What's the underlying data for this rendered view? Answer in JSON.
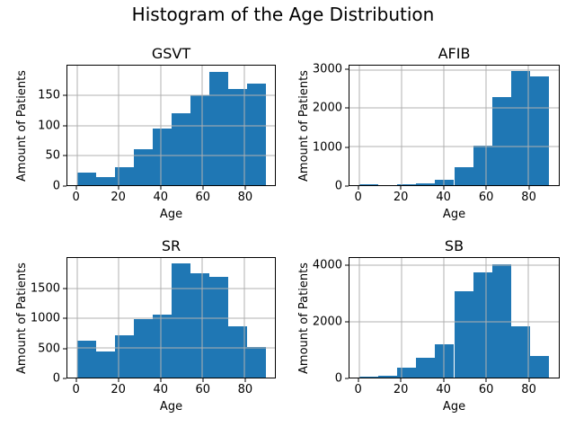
{
  "figure": {
    "title": "Histogram of the Age Distribution",
    "background": "#ffffff",
    "bar_color": "#1f77b4",
    "grid_color": "#b0b0b0",
    "text_color": "#000000"
  },
  "chart_data": [
    {
      "type": "bar",
      "title": "GSVT",
      "xlabel": "Age",
      "ylabel": "Amount of Patients",
      "bins_start": 0,
      "bin_width": 9,
      "categories": [
        "0-9",
        "9-18",
        "18-27",
        "27-36",
        "36-45",
        "45-54",
        "54-63",
        "63-72",
        "72-81",
        "81-90"
      ],
      "values": [
        21,
        14,
        30,
        60,
        95,
        120,
        150,
        190,
        161,
        170
      ],
      "xticks": [
        0,
        20,
        40,
        60,
        80
      ],
      "yticks": [
        0,
        50,
        100,
        150
      ],
      "xlim": [
        -4.5,
        94.5
      ],
      "ylim": [
        0,
        200
      ],
      "grid": true,
      "legend": null
    },
    {
      "type": "bar",
      "title": "AFIB",
      "xlabel": "Age",
      "ylabel": "Amount of Patients",
      "bins_start": 0,
      "bin_width": 9,
      "categories": [
        "0-9",
        "9-18",
        "18-27",
        "27-36",
        "36-45",
        "45-54",
        "54-63",
        "63-72",
        "72-81",
        "81-90"
      ],
      "values": [
        30,
        8,
        20,
        55,
        140,
        470,
        1030,
        2290,
        2960,
        2820
      ],
      "xticks": [
        0,
        20,
        40,
        60,
        80
      ],
      "yticks": [
        0,
        1000,
        2000,
        3000
      ],
      "xlim": [
        -4.5,
        94.5
      ],
      "ylim": [
        0,
        3110
      ],
      "grid": true,
      "legend": null
    },
    {
      "type": "bar",
      "title": "SR",
      "xlabel": "Age",
      "ylabel": "Amount of Patients",
      "bins_start": 0,
      "bin_width": 9,
      "categories": [
        "0-9",
        "9-18",
        "18-27",
        "27-36",
        "36-45",
        "45-54",
        "54-63",
        "63-72",
        "72-81",
        "81-90"
      ],
      "values": [
        620,
        440,
        710,
        980,
        1060,
        1920,
        1760,
        1700,
        860,
        520
      ],
      "xticks": [
        0,
        20,
        40,
        60,
        80
      ],
      "yticks": [
        0,
        500,
        1000,
        1500
      ],
      "xlim": [
        -4.5,
        94.5
      ],
      "ylim": [
        0,
        2016
      ],
      "grid": true,
      "legend": null
    },
    {
      "type": "bar",
      "title": "SB",
      "xlabel": "Age",
      "ylabel": "Amount of Patients",
      "bins_start": 0,
      "bin_width": 9,
      "categories": [
        "0-9",
        "9-18",
        "18-27",
        "27-36",
        "36-45",
        "45-54",
        "54-63",
        "63-72",
        "72-81",
        "81-90"
      ],
      "values": [
        25,
        70,
        350,
        700,
        1190,
        3090,
        3760,
        4060,
        1830,
        770
      ],
      "xticks": [
        0,
        20,
        40,
        60,
        80
      ],
      "yticks": [
        0,
        2000,
        4000
      ],
      "xlim": [
        -4.5,
        94.5
      ],
      "ylim": [
        0,
        4270
      ],
      "grid": true,
      "legend": null
    }
  ]
}
